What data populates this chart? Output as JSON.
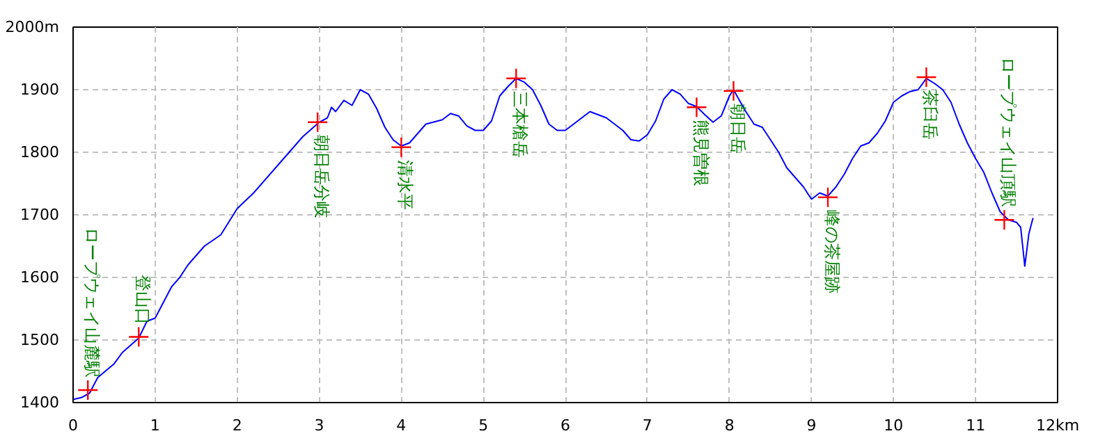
{
  "chart_data": {
    "type": "line",
    "xlim": [
      0,
      12
    ],
    "ylim": [
      1400,
      2000
    ],
    "xticks": [
      0,
      1,
      2,
      3,
      4,
      5,
      6,
      7,
      8,
      9,
      10,
      11,
      {
        "value": 12,
        "label": "12km"
      }
    ],
    "yticks": [
      1400,
      1500,
      1600,
      1700,
      1800,
      1900,
      {
        "value": 2000,
        "label": "2000m"
      }
    ],
    "grid": true,
    "series": [
      {
        "color": "#0000ff",
        "x": [
          0,
          0.1,
          0.2,
          0.3,
          0.5,
          0.6,
          0.8,
          0.9,
          1.0,
          1.1,
          1.2,
          1.3,
          1.4,
          1.6,
          1.8,
          2.0,
          2.2,
          2.5,
          2.8,
          3.0,
          3.1,
          3.15,
          3.2,
          3.3,
          3.4,
          3.5,
          3.6,
          3.7,
          3.8,
          3.9,
          4.0,
          4.1,
          4.3,
          4.5,
          4.6,
          4.7,
          4.8,
          4.9,
          5.0,
          5.1,
          5.2,
          5.3,
          5.4,
          5.5,
          5.6,
          5.7,
          5.8,
          5.9,
          6.0,
          6.2,
          6.3,
          6.5,
          6.7,
          6.8,
          6.9,
          7.0,
          7.1,
          7.2,
          7.3,
          7.4,
          7.5,
          7.6,
          7.7,
          7.8,
          7.9,
          8.0,
          8.05,
          8.1,
          8.2,
          8.3,
          8.4,
          8.5,
          8.6,
          8.7,
          8.8,
          8.9,
          9.0,
          9.1,
          9.2,
          9.3,
          9.4,
          9.5,
          9.6,
          9.7,
          9.8,
          9.9,
          10.0,
          10.1,
          10.2,
          10.3,
          10.4,
          10.5,
          10.6,
          10.7,
          10.8,
          10.9,
          11.0,
          11.1,
          11.2,
          11.3,
          11.4,
          11.5,
          11.55,
          11.6,
          11.65,
          11.7
        ],
        "values": [
          1405,
          1408,
          1415,
          1440,
          1462,
          1480,
          1503,
          1530,
          1535,
          1560,
          1585,
          1600,
          1620,
          1650,
          1668,
          1710,
          1735,
          1780,
          1825,
          1848,
          1855,
          1872,
          1865,
          1883,
          1875,
          1900,
          1893,
          1870,
          1840,
          1820,
          1810,
          1815,
          1845,
          1852,
          1862,
          1858,
          1842,
          1835,
          1835,
          1850,
          1890,
          1905,
          1918,
          1912,
          1900,
          1875,
          1845,
          1835,
          1835,
          1855,
          1865,
          1855,
          1835,
          1820,
          1818,
          1828,
          1850,
          1885,
          1900,
          1893,
          1878,
          1873,
          1860,
          1848,
          1858,
          1890,
          1900,
          1888,
          1865,
          1845,
          1840,
          1820,
          1800,
          1775,
          1760,
          1745,
          1725,
          1735,
          1730,
          1745,
          1765,
          1790,
          1810,
          1815,
          1830,
          1850,
          1880,
          1890,
          1897,
          1900,
          1918,
          1910,
          1900,
          1880,
          1845,
          1815,
          1790,
          1768,
          1735,
          1705,
          1692,
          1688,
          1680,
          1618,
          1670,
          1695
        ]
      },
      {
        "type": "scatter",
        "marker": "cross",
        "color": "#ff0000",
        "x": [
          0.18,
          0.8,
          2.98,
          4.0,
          5.4,
          7.6,
          8.05,
          9.2,
          10.4,
          11.35
        ],
        "values": [
          1420,
          1505,
          1848,
          1808,
          1918,
          1872,
          1898,
          1728,
          1920,
          1692
        ]
      }
    ],
    "annotations": [
      {
        "text": "ロープウェイ山麓駅",
        "x": 0.18,
        "y": 1420
      },
      {
        "text": "登山口",
        "x": 0.8,
        "y": 1505
      },
      {
        "text": "朝日岳分岐",
        "x": 2.98,
        "y": 1848
      },
      {
        "text": "清水平",
        "x": 4.0,
        "y": 1808
      },
      {
        "text": "三本槍岳",
        "x": 5.4,
        "y": 1918
      },
      {
        "text": "熊見曽根",
        "x": 7.6,
        "y": 1872
      },
      {
        "text": "朝日岳",
        "x": 8.05,
        "y": 1898
      },
      {
        "text": "峰の茶屋跡",
        "x": 9.2,
        "y": 1728
      },
      {
        "text": "茶臼岳",
        "x": 10.4,
        "y": 1920
      },
      {
        "text": "ロープウェイ山頂駅",
        "x": 11.35,
        "y": 1692
      }
    ]
  }
}
